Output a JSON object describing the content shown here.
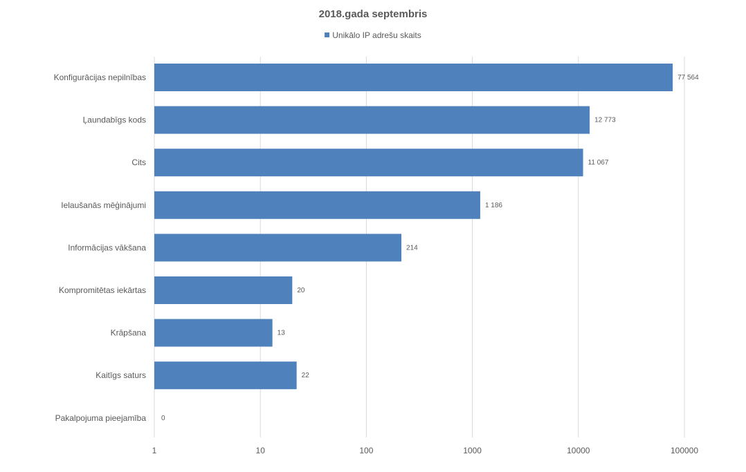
{
  "chart_data": {
    "type": "bar",
    "orientation": "horizontal",
    "title": "2018.gada septembris",
    "legend": [
      "Unikālo IP adrešu skaits"
    ],
    "legend_position": "top",
    "x_scale": "log",
    "xlim": [
      1,
      100000
    ],
    "x_ticks": [
      "1",
      "10",
      "100",
      "1000",
      "10000",
      "100000"
    ],
    "grid": "vertical",
    "bar_color": "#4f81bd",
    "series": [
      {
        "name": "Unikālo IP adrešu skaits",
        "values": [
          77564,
          12773,
          11067,
          1186,
          214,
          20,
          13,
          22,
          0
        ]
      }
    ],
    "categories": [
      "Konfigurācijas nepilnības",
      "Ļaundabīgs kods",
      "Cits",
      "Ielaušanās mēģinājumi",
      "Informācijas vākšana",
      "Kompromitētas iekārtas",
      "Krāpšana",
      "Kaitīgs saturs",
      "Pakalpojuma pieejamība"
    ],
    "data_labels": [
      "77 564",
      "12 773",
      "11 067",
      "1 186",
      "214",
      "20",
      "13",
      "22",
      "0"
    ]
  }
}
